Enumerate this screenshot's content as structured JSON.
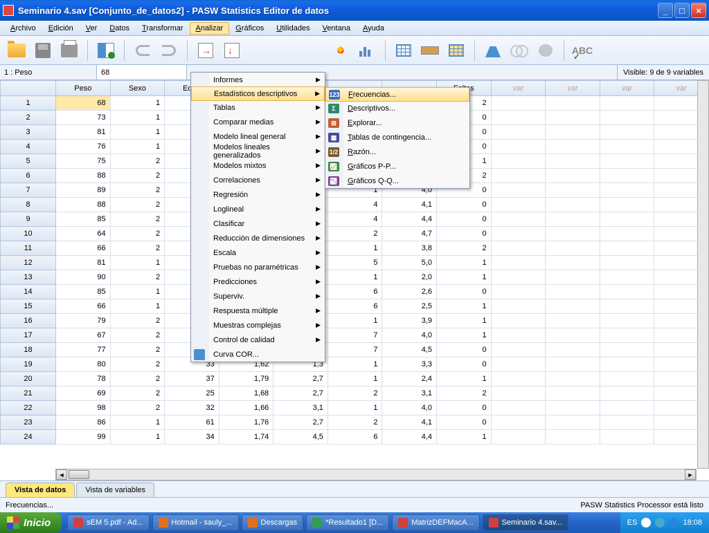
{
  "window": {
    "title": "Seminario 4.sav [Conjunto_de_datos2] - PASW Statistics Editor de datos"
  },
  "menubar": {
    "items": [
      "Archivo",
      "Edición",
      "Ver",
      "Datos",
      "Transformar",
      "Analizar",
      "Gráficos",
      "Utilidades",
      "Ventana",
      "Ayuda"
    ],
    "active_index": 5
  },
  "cellbar": {
    "name": "1 : Peso",
    "value": "68",
    "visible": "Visible: 9 de 9 variables"
  },
  "columns": [
    "Peso",
    "Sexo",
    "Edad",
    "",
    "",
    "",
    "",
    "Faltas"
  ],
  "var_placeholder": "var",
  "rows": [
    [
      68,
      1,
      31,
      "",
      "",
      "",
      "",
      2
    ],
    [
      73,
      1,
      62,
      "",
      "",
      "",
      "",
      0
    ],
    [
      81,
      1,
      45,
      "",
      "",
      "",
      "",
      0
    ],
    [
      76,
      1,
      22,
      "",
      "",
      "",
      "",
      0
    ],
    [
      75,
      2,
      61,
      "",
      "",
      "",
      "",
      1
    ],
    [
      88,
      2,
      24,
      "",
      "",
      1,
      "3,1",
      2
    ],
    [
      89,
      2,
      47,
      "",
      "",
      1,
      "4,0",
      0
    ],
    [
      88,
      2,
      52,
      "",
      "",
      4,
      "4,1",
      0
    ],
    [
      85,
      2,
      38,
      "",
      "",
      4,
      "4,4",
      0
    ],
    [
      64,
      2,
      27,
      "",
      "",
      2,
      "4,7",
      0
    ],
    [
      66,
      2,
      28,
      "",
      "",
      1,
      "3,8",
      2
    ],
    [
      81,
      1,
      21,
      "",
      "",
      5,
      "5,0",
      1
    ],
    [
      90,
      2,
      36,
      "",
      "",
      1,
      "2,0",
      1
    ],
    [
      85,
      1,
      44,
      "",
      "",
      6,
      "2,6",
      0
    ],
    [
      66,
      1,
      55,
      "",
      "",
      6,
      "2,5",
      1
    ],
    [
      79,
      2,
      58,
      "1,69",
      "3,1",
      1,
      "3,9",
      1
    ],
    [
      67,
      2,
      62,
      "1,65",
      "2,7",
      7,
      "4,0",
      1
    ],
    [
      77,
      2,
      69,
      "1,61",
      "2,5",
      7,
      "4,5",
      0
    ],
    [
      80,
      2,
      33,
      "1,62",
      "1,3",
      1,
      "3,3",
      0
    ],
    [
      78,
      2,
      37,
      "1,79",
      "2,7",
      1,
      "2,4",
      1
    ],
    [
      69,
      2,
      25,
      "1,68",
      "2,7",
      2,
      "3,1",
      2
    ],
    [
      98,
      2,
      32,
      "1,66",
      "3,1",
      1,
      "4,0",
      0
    ],
    [
      86,
      1,
      61,
      "1,76",
      "2,7",
      2,
      "4,1",
      0
    ],
    [
      99,
      1,
      34,
      "1,74",
      "4,5",
      6,
      "4,4",
      1
    ]
  ],
  "dropdown_main": [
    {
      "label": "Informes",
      "arrow": true
    },
    {
      "label": "Estadísticos descriptivos",
      "arrow": true,
      "hover": true
    },
    {
      "label": "Tablas",
      "arrow": true
    },
    {
      "label": "Comparar medias",
      "arrow": true
    },
    {
      "label": "Modelo lineal general",
      "arrow": true
    },
    {
      "label": "Modelos lineales generalizados",
      "arrow": true
    },
    {
      "label": "Modelos mixtos",
      "arrow": true
    },
    {
      "label": "Correlaciones",
      "arrow": true
    },
    {
      "label": "Regresión",
      "arrow": true
    },
    {
      "label": "Loglineal",
      "arrow": true
    },
    {
      "label": "Clasificar",
      "arrow": true
    },
    {
      "label": "Reducción de dimensiones",
      "arrow": true
    },
    {
      "label": "Escala",
      "arrow": true
    },
    {
      "label": "Pruebas no paramétricas",
      "arrow": true
    },
    {
      "label": "Predicciones",
      "arrow": true
    },
    {
      "label": "Superviv.",
      "arrow": true
    },
    {
      "label": "Respuesta múltiple",
      "arrow": true
    },
    {
      "label": "Muestras complejas",
      "arrow": true
    },
    {
      "label": "Control de calidad",
      "arrow": true
    },
    {
      "label": "Curva COR...",
      "arrow": false,
      "icon": "cor"
    }
  ],
  "dropdown_sub": [
    {
      "label": "Frecuencias...",
      "hover": true,
      "color": "#3a70c0",
      "txt": "123"
    },
    {
      "label": "Descriptivos...",
      "color": "#2a8a6a",
      "txt": "Σ"
    },
    {
      "label": "Explorar...",
      "color": "#c06030",
      "txt": "⊞"
    },
    {
      "label": "Tablas de contingencia...",
      "color": "#4a4aa0",
      "txt": "▦"
    },
    {
      "label": "Razón...",
      "color": "#7a5a2a",
      "txt": "1/2"
    },
    {
      "label": "Gráficos P-P...",
      "color": "#3a8a3a",
      "txt": "📈"
    },
    {
      "label": "Gráficos Q-Q...",
      "color": "#8a3a8a",
      "txt": "📉"
    }
  ],
  "tabs": {
    "active": "Vista de datos",
    "inactive": "Vista de variables"
  },
  "statusbar": {
    "left": "Frecuencias...",
    "right": "PASW Statistics Processor está listo"
  },
  "taskbar": {
    "start": "Inicio",
    "items": [
      {
        "label": "sEM 5.pdf - Ad...",
        "color": "#d04040"
      },
      {
        "label": "Hotmail - sauly_...",
        "color": "#e07020"
      },
      {
        "label": "Descargas",
        "color": "#e07020"
      },
      {
        "label": "*Resultado1 [D...",
        "color": "#30a050"
      },
      {
        "label": "MatrizDEFMacA...",
        "color": "#d04040"
      },
      {
        "label": "Seminario 4.sav...",
        "color": "#d04040",
        "active": true
      }
    ],
    "lang": "ES",
    "clock": "18:08"
  }
}
